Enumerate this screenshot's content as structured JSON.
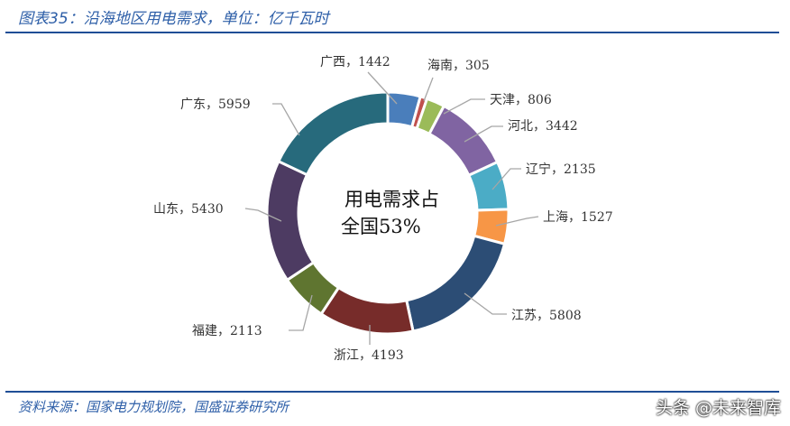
{
  "header": {
    "title": "图表35：沿海地区用电需求，单位：亿千瓦时"
  },
  "footer": {
    "source": "资料来源：国家电力规划院，国盛证券研究所",
    "watermark": "头条 @未来智库"
  },
  "chart_data": {
    "type": "pie",
    "subtype": "donut",
    "title": "沿海地区用电需求，单位：亿千瓦时",
    "unit": "亿千瓦时",
    "center_text": [
      "用电需求占",
      "全国53%"
    ],
    "categories": [
      "广西",
      "海南",
      "天津",
      "河北",
      "辽宁",
      "上海",
      "江苏",
      "浙江",
      "福建",
      "山东",
      "广东"
    ],
    "values": [
      1442,
      305,
      806,
      3442,
      2135,
      1527,
      5808,
      4193,
      2113,
      5430,
      5959
    ],
    "colors": [
      "#4a7ebb",
      "#c0504d",
      "#9bbb59",
      "#8064a2",
      "#4bacc6",
      "#f79646",
      "#2c4d75",
      "#772c2a",
      "#5f7530",
      "#4d3b62",
      "#276a7c"
    ],
    "direction": "clockwise from top",
    "labels": [
      "广西，1442",
      "海南，305",
      "天津，806",
      "河北，3442",
      "辽宁，2135",
      "上海，1527",
      "江苏，5808",
      "浙江，4193",
      "福建，2113",
      "山东，5430",
      "广东，5959"
    ]
  }
}
